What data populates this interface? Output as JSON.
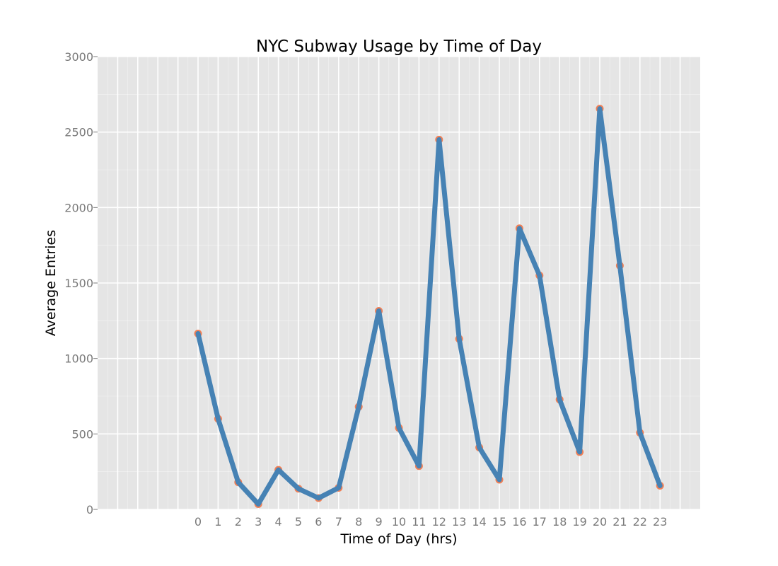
{
  "chart_data": {
    "type": "line",
    "title": "NYC Subway Usage by Time of Day",
    "xlabel": "Time of Day (hrs)",
    "ylabel": "Average Entries",
    "x": [
      0,
      1,
      2,
      3,
      4,
      5,
      6,
      7,
      8,
      9,
      10,
      11,
      12,
      13,
      14,
      15,
      16,
      17,
      18,
      19,
      20,
      21,
      22,
      23
    ],
    "y_ticks": [
      0,
      500,
      1000,
      1500,
      2000,
      2500,
      3000
    ],
    "ylim": [
      0,
      3000
    ],
    "xlim": [
      -5,
      25
    ],
    "grid": true,
    "series": [
      {
        "values": [
          1165,
          600,
          180,
          35,
          262,
          137,
          75,
          143,
          680,
          1315,
          540,
          287,
          2450,
          1130,
          410,
          197,
          1862,
          1550,
          728,
          380,
          2655,
          1615,
          508,
          157
        ],
        "line_color": "#4682b4",
        "marker_color": "#f07f55"
      }
    ],
    "background_color": "#e5e5e5",
    "grid_color": "#ffffff"
  }
}
